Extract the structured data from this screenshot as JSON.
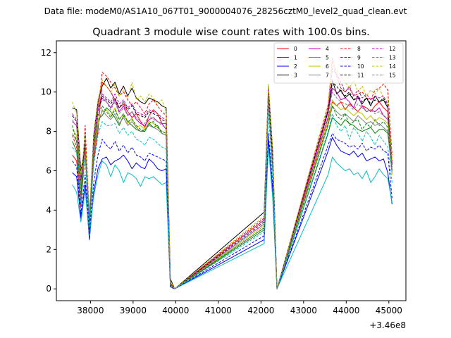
{
  "figure": {
    "suptitle": "Data file: modeM0/AS1A10_067T01_9000004076_28256cztM0_level2_quad_clean.evt",
    "title": "Quadrant 3 module wise count rates with 100.0s bins."
  },
  "chart_data": {
    "type": "line",
    "title": "Quadrant 3 module wise count rates with 100.0s bins.",
    "xlabel": "",
    "ylabel": "",
    "x_offset_label": "+3.46e8",
    "x_offset": 346000000,
    "xlim": [
      37200,
      45400
    ],
    "ylim": [
      -0.6,
      12.6
    ],
    "x_ticks": [
      38000,
      39000,
      40000,
      41000,
      42000,
      43000,
      44000,
      45000
    ],
    "x_tick_labels": [
      "38000",
      "39000",
      "40000",
      "41000",
      "42000",
      "43000",
      "44000",
      "45000"
    ],
    "y_ticks": [
      0,
      2,
      4,
      6,
      8,
      10,
      12
    ],
    "y_tick_labels": [
      "0",
      "2",
      "4",
      "6",
      "8",
      "10",
      "12"
    ],
    "grid": false,
    "legend_position": "top-right",
    "legend_columns": 4,
    "segments": [
      {
        "x_start": 37575,
        "n": 23
      },
      {
        "x_start": 39875,
        "n": 2
      },
      {
        "x_start": 42075,
        "n": 3
      },
      {
        "x_start": 42375,
        "n": 1
      },
      {
        "x_start": 43575,
        "n": 16
      }
    ],
    "series": [
      {
        "name": "0",
        "color": "#ff0000",
        "style": "solid",
        "values": [
          6.8,
          6.5,
          4.2,
          7.2,
          3.5,
          6.5,
          8.0,
          10.5,
          10.3,
          10.0,
          9.6,
          9.2,
          9.4,
          9.0,
          8.7,
          8.9,
          8.5,
          8.2,
          8.8,
          9.1,
          8.9,
          8.4,
          8.4,
          0.3,
          0.0,
          3.5,
          10.0,
          6.5,
          0.0,
          8.7,
          9.5,
          9.3,
          9.5,
          9.1,
          9.4,
          9.2,
          9.0,
          9.3,
          9.2,
          9.0,
          9.3,
          9.5,
          9.2,
          9.0,
          6.5
        ]
      },
      {
        "name": "1",
        "color": "#008000",
        "style": "solid",
        "values": [
          7.5,
          7.0,
          4.3,
          7.8,
          3.0,
          6.7,
          8.6,
          8.8,
          9.2,
          9.0,
          8.7,
          8.3,
          8.8,
          8.5,
          8.3,
          8.1,
          8.0,
          8.0,
          8.4,
          8.2,
          8.3,
          7.9,
          7.8,
          0.1,
          0.0,
          3.0,
          9.7,
          6.0,
          0.0,
          7.9,
          8.7,
          8.5,
          8.3,
          8.6,
          8.4,
          8.3,
          8.1,
          8.0,
          8.1,
          8.2,
          7.9,
          8.1,
          8.1,
          7.9,
          6.0
        ]
      },
      {
        "name": "2",
        "color": "#0000ff",
        "style": "solid",
        "values": [
          5.9,
          5.7,
          3.6,
          5.3,
          2.5,
          4.9,
          6.1,
          6.6,
          6.7,
          6.3,
          6.5,
          6.6,
          6.8,
          6.5,
          6.1,
          6.4,
          6.2,
          6.1,
          6.6,
          6.4,
          6.1,
          6.0,
          6.1,
          0.1,
          0.0,
          2.5,
          7.6,
          5.0,
          0.0,
          7.0,
          7.7,
          7.3,
          7.0,
          6.9,
          6.8,
          7.0,
          6.7,
          6.9,
          6.5,
          6.6,
          6.7,
          6.5,
          6.6,
          5.9,
          4.3
        ]
      },
      {
        "name": "3",
        "color": "#000000",
        "style": "solid",
        "values": [
          9.2,
          9.1,
          6.0,
          7.2,
          3.0,
          7.8,
          9.5,
          10.3,
          10.7,
          10.2,
          10.5,
          9.9,
          10.3,
          9.8,
          10.2,
          9.7,
          9.5,
          9.4,
          9.7,
          9.6,
          9.5,
          9.3,
          9.2,
          0.5,
          0.0,
          3.9,
          10.3,
          7.0,
          0.0,
          9.1,
          10.6,
          9.9,
          10.1,
          9.7,
          9.9,
          9.6,
          9.7,
          9.4,
          9.7,
          9.3,
          9.8,
          9.5,
          9.6,
          9.2,
          6.3
        ]
      },
      {
        "name": "4",
        "color": "#c000c0",
        "style": "solid",
        "values": [
          8.5,
          8.3,
          5.5,
          6.8,
          3.8,
          7.0,
          9.2,
          9.7,
          9.5,
          9.2,
          9.6,
          9.0,
          9.3,
          8.8,
          9.0,
          8.6,
          8.4,
          8.3,
          8.6,
          8.7,
          8.5,
          8.4,
          8.1,
          0.2,
          0.0,
          3.3,
          9.8,
          6.4,
          0.0,
          9.0,
          10.2,
          10.0,
          9.6,
          9.7,
          9.5,
          9.2,
          9.8,
          9.3,
          9.0,
          9.1,
          9.0,
          9.2,
          8.8,
          8.6,
          6.0
        ]
      },
      {
        "name": "5",
        "color": "#00c0c0",
        "style": "solid",
        "values": [
          5.3,
          4.9,
          3.4,
          5.0,
          2.7,
          4.7,
          5.8,
          6.5,
          6.3,
          5.7,
          6.3,
          6.0,
          5.4,
          5.9,
          5.8,
          5.6,
          5.2,
          5.7,
          5.6,
          5.7,
          5.5,
          5.3,
          5.4,
          0.1,
          0.0,
          2.3,
          7.2,
          4.6,
          0.0,
          5.8,
          6.7,
          6.4,
          6.2,
          6.0,
          6.1,
          5.8,
          5.9,
          5.6,
          6.0,
          5.4,
          5.7,
          6.1,
          5.8,
          5.6,
          4.4
        ]
      },
      {
        "name": "6",
        "color": "#c0c000",
        "style": "solid",
        "values": [
          8.1,
          7.8,
          5.1,
          6.9,
          3.6,
          7.1,
          8.6,
          9.0,
          9.1,
          8.8,
          9.2,
          8.6,
          8.9,
          8.4,
          8.7,
          8.2,
          8.3,
          8.1,
          8.5,
          8.4,
          8.2,
          8.0,
          7.9,
          0.2,
          0.0,
          3.2,
          10.2,
          6.3,
          0.0,
          8.5,
          9.6,
          9.3,
          9.1,
          9.2,
          9.0,
          8.8,
          9.0,
          8.9,
          8.6,
          8.8,
          8.5,
          8.7,
          8.6,
          8.4,
          5.8
        ]
      },
      {
        "name": "7",
        "color": "#808080",
        "style": "solid",
        "values": [
          7.9,
          7.5,
          5.2,
          7.0,
          3.2,
          6.8,
          8.3,
          9.1,
          8.8,
          8.6,
          8.9,
          8.4,
          8.7,
          8.3,
          8.5,
          8.2,
          8.0,
          8.1,
          8.3,
          8.2,
          8.1,
          7.9,
          7.8,
          0.2,
          0.0,
          3.1,
          9.9,
          6.2,
          0.0,
          8.3,
          9.3,
          9.0,
          8.8,
          8.9,
          8.7,
          8.5,
          8.8,
          8.6,
          8.4,
          8.5,
          8.3,
          8.4,
          8.2,
          8.0,
          5.9
        ]
      },
      {
        "name": "8",
        "color": "#ff0000",
        "style": "dashed",
        "values": [
          7.8,
          7.2,
          4.5,
          8.3,
          3.5,
          7.0,
          9.0,
          11.0,
          10.8,
          10.5,
          10.2,
          9.8,
          10.0,
          9.6,
          9.3,
          9.5,
          9.2,
          8.9,
          9.4,
          9.6,
          9.3,
          9.0,
          8.8,
          0.3,
          0.0,
          3.6,
          10.2,
          6.8,
          0.0,
          9.3,
          11.7,
          10.8,
          10.2,
          10.0,
          10.3,
          9.8,
          9.9,
          10.0,
          9.7,
          9.6,
          10.1,
          10.2,
          10.4,
          10.1,
          6.8
        ]
      },
      {
        "name": "9",
        "color": "#008000",
        "style": "dashed",
        "values": [
          8.3,
          7.5,
          4.8,
          7.5,
          3.2,
          7.2,
          8.8,
          9.3,
          9.0,
          8.7,
          9.1,
          8.6,
          8.9,
          8.5,
          8.6,
          8.3,
          8.1,
          8.0,
          8.4,
          8.5,
          8.2,
          8.0,
          7.9,
          0.2,
          0.0,
          3.1,
          9.5,
          6.1,
          0.0,
          8.4,
          9.3,
          8.8,
          8.6,
          8.9,
          8.3,
          8.5,
          8.6,
          8.1,
          8.4,
          8.2,
          8.6,
          8.3,
          8.5,
          8.2,
          6.0
        ]
      },
      {
        "name": "10",
        "color": "#0000ff",
        "style": "dashed",
        "values": [
          6.5,
          6.2,
          3.8,
          5.8,
          2.8,
          5.4,
          6.8,
          7.6,
          7.3,
          7.1,
          7.5,
          7.0,
          7.3,
          6.9,
          7.2,
          6.8,
          6.7,
          6.5,
          6.9,
          6.8,
          6.7,
          6.6,
          6.5,
          0.1,
          0.0,
          2.7,
          7.9,
          5.3,
          0.0,
          7.3,
          7.9,
          7.6,
          7.5,
          7.4,
          7.2,
          7.3,
          7.1,
          7.4,
          7.0,
          7.2,
          7.1,
          7.3,
          7.0,
          6.9,
          4.6
        ]
      },
      {
        "name": "11",
        "color": "#000000",
        "style": "dashed",
        "values": [
          8.8,
          8.5,
          5.5,
          7.3,
          3.4,
          7.4,
          9.0,
          9.8,
          9.6,
          9.4,
          9.7,
          9.2,
          9.5,
          9.1,
          9.3,
          8.9,
          8.8,
          8.7,
          9.0,
          8.9,
          8.8,
          8.6,
          8.5,
          0.2,
          0.0,
          3.4,
          10.0,
          6.6,
          0.0,
          9.0,
          10.5,
          10.3,
          10.0,
          9.8,
          10.0,
          9.6,
          9.8,
          9.5,
          9.7,
          9.4,
          9.6,
          9.5,
          9.7,
          9.3,
          6.2
        ]
      },
      {
        "name": "12",
        "color": "#c000c0",
        "style": "dashed",
        "values": [
          8.9,
          8.6,
          5.6,
          7.6,
          3.7,
          7.6,
          9.3,
          9.9,
          9.7,
          9.5,
          9.9,
          9.4,
          9.6,
          9.2,
          9.4,
          9.0,
          8.9,
          8.8,
          9.1,
          9.0,
          8.9,
          8.7,
          8.6,
          0.2,
          0.0,
          3.5,
          10.1,
          6.7,
          0.0,
          9.1,
          11.2,
          10.9,
          10.5,
          10.0,
          10.2,
          9.8,
          10.1,
          9.7,
          9.9,
          9.6,
          9.8,
          9.7,
          9.8,
          9.4,
          6.4
        ]
      },
      {
        "name": "13",
        "color": "#00c0c0",
        "style": "dashed",
        "values": [
          7.2,
          6.9,
          4.4,
          6.6,
          3.1,
          6.3,
          7.8,
          8.5,
          8.3,
          8.3,
          8.4,
          7.9,
          8.2,
          7.8,
          8.0,
          7.6,
          7.5,
          7.3,
          7.7,
          7.6,
          7.4,
          7.2,
          7.1,
          0.2,
          0.0,
          2.9,
          8.9,
          5.8,
          0.0,
          8.0,
          8.9,
          8.3,
          8.0,
          8.3,
          7.6,
          8.2,
          7.9,
          7.5,
          8.0,
          7.7,
          7.3,
          7.8,
          7.5,
          7.2,
          5.4
        ]
      },
      {
        "name": "14",
        "color": "#c0c000",
        "style": "dashed",
        "values": [
          9.5,
          8.9,
          5.8,
          7.7,
          3.9,
          7.9,
          9.6,
          10.6,
          10.3,
          10.0,
          10.4,
          9.8,
          10.1,
          9.7,
          10.5,
          9.6,
          9.8,
          9.5,
          9.9,
          9.7,
          9.4,
          9.6,
          9.0,
          0.4,
          0.0,
          3.7,
          10.4,
          7.1,
          0.0,
          9.4,
          11.5,
          11.1,
          10.8,
          10.5,
          10.2,
          10.6,
          10.0,
          10.3,
          9.8,
          10.1,
          9.9,
          10.2,
          9.7,
          9.6,
          6.5
        ]
      },
      {
        "name": "15",
        "color": "#808080",
        "style": "dashed",
        "values": [
          8.6,
          8.2,
          5.3,
          7.1,
          3.6,
          7.2,
          9.0,
          9.6,
          9.5,
          9.1,
          9.5,
          8.9,
          9.2,
          8.8,
          9.0,
          8.7,
          8.5,
          8.4,
          8.8,
          8.6,
          8.5,
          8.3,
          8.2,
          0.2,
          0.0,
          3.3,
          9.7,
          6.3,
          0.0,
          8.8,
          10.0,
          9.7,
          9.5,
          9.4,
          9.3,
          9.1,
          9.4,
          9.2,
          9.0,
          9.1,
          8.9,
          9.0,
          8.8,
          8.7,
          6.1
        ]
      }
    ]
  }
}
